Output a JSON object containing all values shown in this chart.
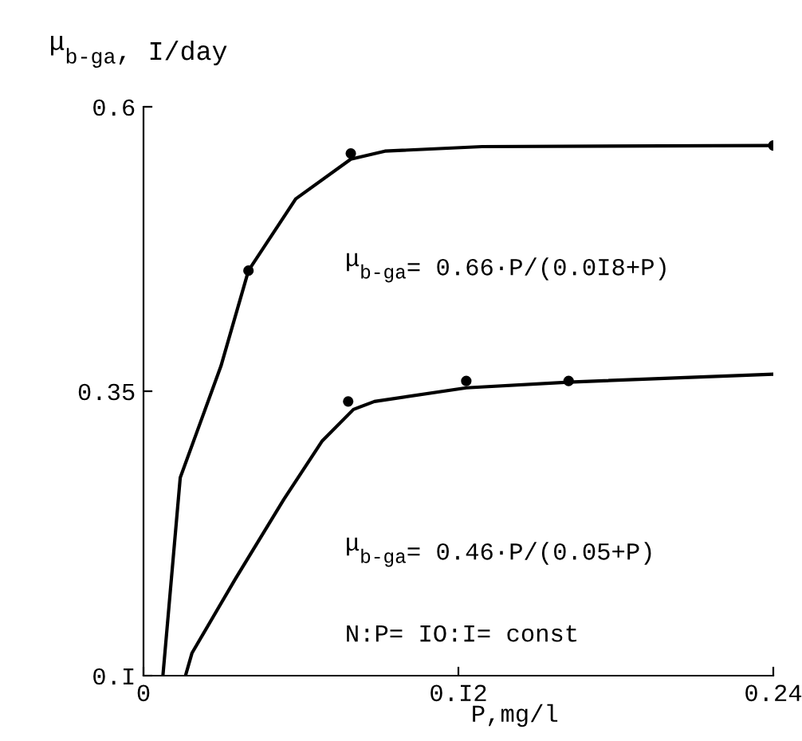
{
  "chart_data": {
    "type": "line",
    "ylabel": "μ$_{b-ga}$, I/day",
    "xlabel": "P,mg/l",
    "xlim": [
      0,
      0.24
    ],
    "ylim": [
      0.1,
      0.6
    ],
    "xticks": [
      0,
      {
        "value": 0.12,
        "label": "0.I2"
      },
      0.24
    ],
    "yticks": [
      {
        "value": 0.1,
        "label": "0.I"
      },
      0.35,
      0.6
    ],
    "grid": false,
    "legend": false,
    "series": [
      {
        "color": "#000000",
        "marker": "none",
        "x": [
          0.0074,
          0.014,
          0.0295,
          0.04,
          0.058,
          0.079,
          0.092,
          0.129,
          0.24
        ],
        "values": [
          0.1,
          0.274,
          0.372,
          0.456,
          0.519,
          0.554,
          0.561,
          0.565,
          0.566
        ]
      },
      {
        "type": "scatter",
        "color": "#000000",
        "marker": "circle",
        "x": [
          0.04,
          0.079,
          0.24
        ],
        "values": [
          0.456,
          0.559,
          0.566
        ]
      },
      {
        "color": "#000000",
        "marker": "none",
        "x": [
          0.016,
          0.0185,
          0.035,
          0.0535,
          0.068,
          0.08,
          0.088,
          0.123,
          0.162,
          0.24
        ],
        "values": [
          0.1,
          0.12,
          0.185,
          0.255,
          0.306,
          0.334,
          0.341,
          0.353,
          0.358,
          0.365
        ]
      },
      {
        "type": "scatter",
        "color": "#000000",
        "marker": "circle",
        "x": [
          0.078,
          0.123,
          0.162
        ],
        "values": [
          0.341,
          0.359,
          0.359
        ]
      }
    ],
    "annotations": [
      "μ$_{b-ga}$= 0.66·P/(0.0I8+P)",
      "μ$_{b-ga}$= 0.46·P/(0.05+P)",
      "N:P= IO:I= const"
    ]
  }
}
